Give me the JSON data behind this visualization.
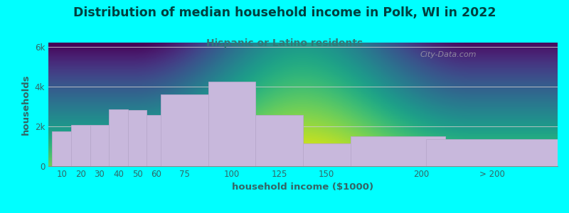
{
  "title": "Distribution of median household income in Polk, WI in 2022",
  "subtitle": "Hispanic or Latino residents",
  "xlabel": "household income ($1000)",
  "ylabel": "households",
  "background_color": "#00FFFF",
  "plot_bg_gradient_top": "#dff0e0",
  "plot_bg_gradient_bottom": "#f8fff8",
  "bar_color": "#c8b8dc",
  "bar_edge_color": "#b8a8cc",
  "title_color": "#004040",
  "subtitle_color": "#337777",
  "axis_label_color": "#336666",
  "tick_color": "#336666",
  "categories": [
    "10",
    "20",
    "30",
    "40",
    "50",
    "60",
    "75",
    "100",
    "125",
    "150",
    "200",
    "> 200"
  ],
  "values": [
    1750,
    2050,
    2050,
    2850,
    2800,
    2550,
    3600,
    4250,
    2550,
    1150,
    1500,
    1350
  ],
  "bar_widths": [
    10,
    10,
    10,
    10,
    10,
    15,
    25,
    25,
    25,
    50,
    50,
    70
  ],
  "bar_centers": [
    10,
    20,
    30,
    40,
    50,
    62.5,
    75,
    100,
    125,
    162.5,
    187.5,
    237.5
  ],
  "yticks": [
    0,
    2000,
    4000,
    6000
  ],
  "ytick_labels": [
    "0",
    "2k",
    "4k",
    "6k"
  ],
  "ylim": [
    0,
    6200
  ],
  "xlim_left": 3,
  "xlim_right": 272,
  "title_fontsize": 12.5,
  "subtitle_fontsize": 10,
  "axis_label_fontsize": 9.5,
  "tick_fontsize": 8.5,
  "watermark_text": "City-Data.com",
  "xtick_positions": [
    10,
    20,
    30,
    40,
    50,
    60,
    75,
    100,
    125,
    150,
    200,
    237.5
  ],
  "xtick_labels": [
    "10",
    "20",
    "30",
    "40",
    "50",
    "60",
    "75",
    "100",
    "125",
    "150",
    "200",
    "> 200"
  ]
}
